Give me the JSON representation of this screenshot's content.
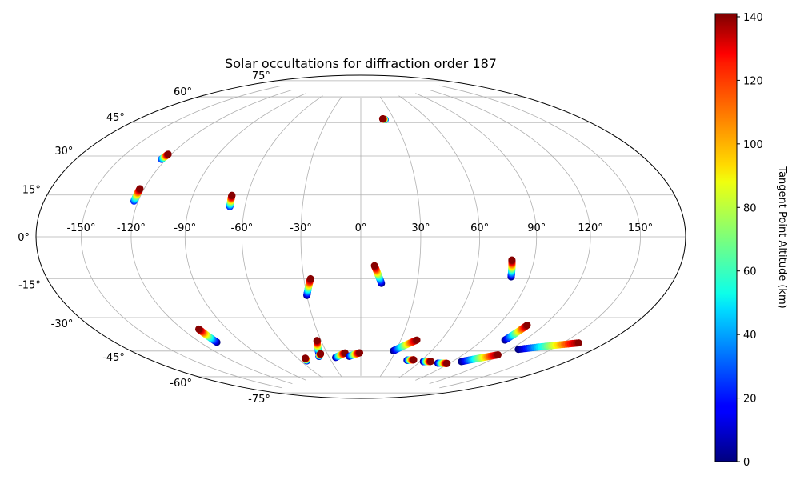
{
  "chart_data": {
    "type": "scatter",
    "projection": "hammer",
    "title": "Solar occultations for diffraction order 187",
    "xlabel": "",
    "ylabel": "",
    "grid": true,
    "lon_ticks": [
      -150,
      -120,
      -90,
      -60,
      -30,
      0,
      30,
      60,
      90,
      120,
      150
    ],
    "lon_tick_labels": [
      "-150°",
      "-120°",
      "-90°",
      "-60°",
      "-30°",
      "0°",
      "30°",
      "60°",
      "90°",
      "120°",
      "150°"
    ],
    "lat_ticks": [
      75,
      60,
      45,
      30,
      15,
      0,
      -15,
      -30,
      -45,
      -60,
      -75
    ],
    "lat_tick_labels": [
      "75°",
      "60°",
      "45°",
      "30°",
      "15°",
      "0°",
      "-15°",
      "-30°",
      "-45°",
      "-60°",
      "-75°"
    ],
    "colorbar": {
      "label": "Tangent Point Altitude (km)",
      "colormap": "jet",
      "range": [
        0,
        141
      ],
      "ticks": [
        0,
        20,
        40,
        60,
        80,
        100,
        120,
        140
      ],
      "tick_labels": [
        "0",
        "20",
        "40",
        "60",
        "80",
        "100",
        "120",
        "140"
      ]
    },
    "series": [
      {
        "lon": [
          -122,
          -123
        ],
        "lat": [
          37,
          34.5
        ],
        "alt": [
          140,
          20
        ]
      },
      {
        "lon": [
          -122.5,
          -122.5
        ],
        "lat": [
          21,
          15.5
        ],
        "alt": [
          140,
          20
        ]
      },
      {
        "lon": [
          -68.5,
          -68
        ],
        "lat": [
          20,
          14.5
        ],
        "alt": [
          140,
          20
        ]
      },
      {
        "lon": [
          20,
          22
        ],
        "lat": [
          62,
          61.5
        ],
        "alt": [
          140,
          20
        ]
      },
      {
        "lon": [
          7,
          11
        ],
        "lat": [
          -14.5,
          -23.5
        ],
        "alt": [
          140,
          0
        ]
      },
      {
        "lon": [
          -26.5,
          -30
        ],
        "lat": [
          -21,
          -29.5
        ],
        "alt": [
          140,
          0
        ]
      },
      {
        "lon": [
          78,
          80
        ],
        "lat": [
          -11,
          -19
        ],
        "alt": [
          140,
          0
        ]
      },
      {
        "lon": [
          -109,
          -108
        ],
        "lat": [
          -43,
          -50
        ],
        "alt": [
          140,
          0
        ]
      },
      {
        "lon": [
          -53,
          -54
        ],
        "lat": [
          -63,
          -64.5
        ],
        "alt": [
          140,
          0
        ]
      },
      {
        "lon": [
          -33,
          -37
        ],
        "lat": [
          -53.5,
          -60.5
        ],
        "alt": [
          140,
          0
        ]
      },
      {
        "lon": [
          -36,
          -39
        ],
        "lat": [
          -61,
          -62.5
        ],
        "alt": [
          140,
          0
        ]
      },
      {
        "lon": [
          -14,
          -24
        ],
        "lat": [
          -61,
          -63.5
        ],
        "alt": [
          140,
          0
        ]
      },
      {
        "lon": [
          -1,
          -11
        ],
        "lat": [
          -61,
          -63
        ],
        "alt": [
          140,
          0
        ]
      },
      {
        "lon": [
          42,
          28
        ],
        "lat": [
          -53,
          -59.5
        ],
        "alt": [
          140,
          0
        ]
      },
      {
        "lon": [
          52,
          46
        ],
        "lat": [
          -64,
          -64.5
        ],
        "alt": [
          140,
          0
        ]
      },
      {
        "lon": [
          70,
          63
        ],
        "lat": [
          -64,
          -64.5
        ],
        "alt": [
          140,
          0
        ]
      },
      {
        "lon": [
          88,
          79
        ],
        "lat": [
          -64,
          -64.5
        ],
        "alt": [
          140,
          0
        ]
      },
      {
        "lon": [
          109,
          106
        ],
        "lat": [
          -41,
          -49
        ],
        "alt": [
          140,
          0
        ]
      },
      {
        "lon": [
          118,
          98
        ],
        "lat": [
          -56,
          -62
        ],
        "alt": [
          140,
          0
        ]
      },
      {
        "lon": [
          161,
          126
        ],
        "lat": [
          -44,
          -52
        ],
        "alt": [
          140,
          0
        ]
      }
    ]
  }
}
